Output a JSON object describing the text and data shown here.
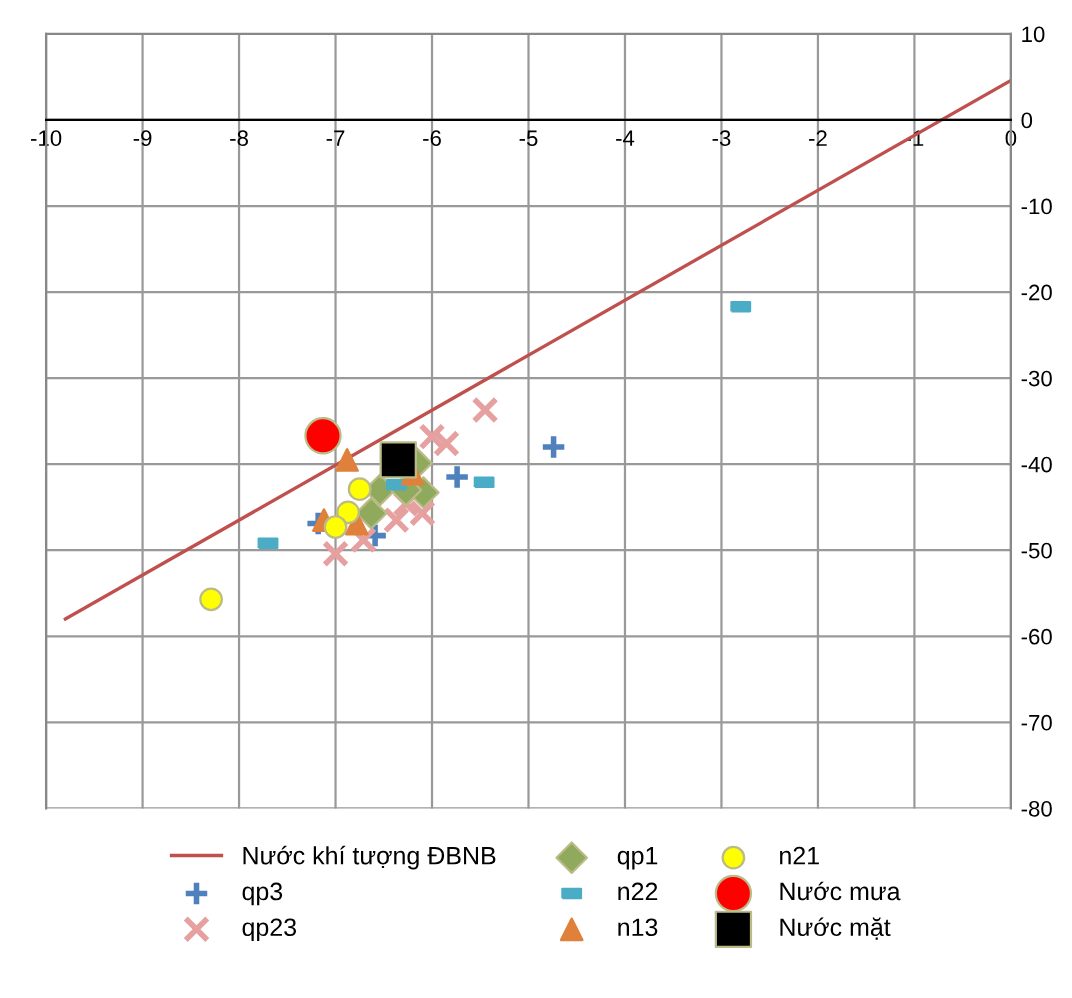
{
  "chart_data": {
    "type": "scatter",
    "xlim": [
      -10,
      0
    ],
    "ylim": [
      -80,
      10
    ],
    "xticks": [
      -10,
      -9,
      -8,
      -7,
      -6,
      -5,
      -4,
      -3,
      -2,
      -1,
      0
    ],
    "yticks": [
      -80,
      -70,
      -60,
      -50,
      -40,
      -30,
      -20,
      -10,
      0,
      10
    ],
    "grid": true,
    "legend": "bottom",
    "series": [
      {
        "name": "Nước khí tượng ĐBNB",
        "type": "line",
        "color": "#c0504d",
        "marker": "none",
        "x": [
          -9.8,
          0
        ],
        "values": [
          -58,
          4.6
        ]
      },
      {
        "name": "qp3",
        "color": "#4f81bd",
        "marker": "plus",
        "x": [
          -4.74,
          -5.74,
          -7.18,
          -6.59
        ],
        "values": [
          -38,
          -41.5,
          -46.9,
          -48.3
        ]
      },
      {
        "name": "qp23",
        "color": "#e6a0a0",
        "marker": "cross",
        "x": [
          -5.45,
          -6.0,
          -5.85,
          -7.0,
          -6.71,
          -6.37,
          -6.1,
          -6.27
        ],
        "values": [
          -33.7,
          -36.8,
          -37.6,
          -50.4,
          -48.8,
          -46.5,
          -45.7,
          -44.6
        ]
      },
      {
        "name": "qp1",
        "color": "#8faa5c",
        "marker": "diamond",
        "x": [
          -6.54,
          -6.16,
          -6.09,
          -6.63,
          -6.27
        ],
        "values": [
          -43,
          -39.9,
          -43.3,
          -45.7,
          -43
        ]
      },
      {
        "name": "n22",
        "color": "#4bacc6",
        "marker": "square",
        "x": [
          -7.7,
          -5.46,
          -6.37,
          -2.8
        ],
        "values": [
          -49.2,
          -42.1,
          -42.4,
          -21.7
        ]
      },
      {
        "name": "n13",
        "color": "#e0803a",
        "marker": "triangle",
        "x": [
          -6.88,
          -7.12,
          -6.78,
          -6.2
        ],
        "values": [
          -39.5,
          -46.5,
          -46.9,
          -41.1
        ]
      },
      {
        "name": "n21",
        "color": "#ffff00",
        "marker": "circle",
        "x": [
          -8.29,
          -6.75,
          -6.87,
          -7.0
        ],
        "values": [
          -55.7,
          -42.9,
          -45.6,
          -47.3
        ]
      },
      {
        "name": "Nước mưa",
        "color": "#ff0000",
        "marker": "circle",
        "x": [
          -7.13
        ],
        "values": [
          -36.7
        ]
      },
      {
        "name": "Nước mặt",
        "color": "#000000",
        "marker": "square",
        "x": [
          -6.35
        ],
        "values": [
          -39.5
        ]
      }
    ]
  }
}
